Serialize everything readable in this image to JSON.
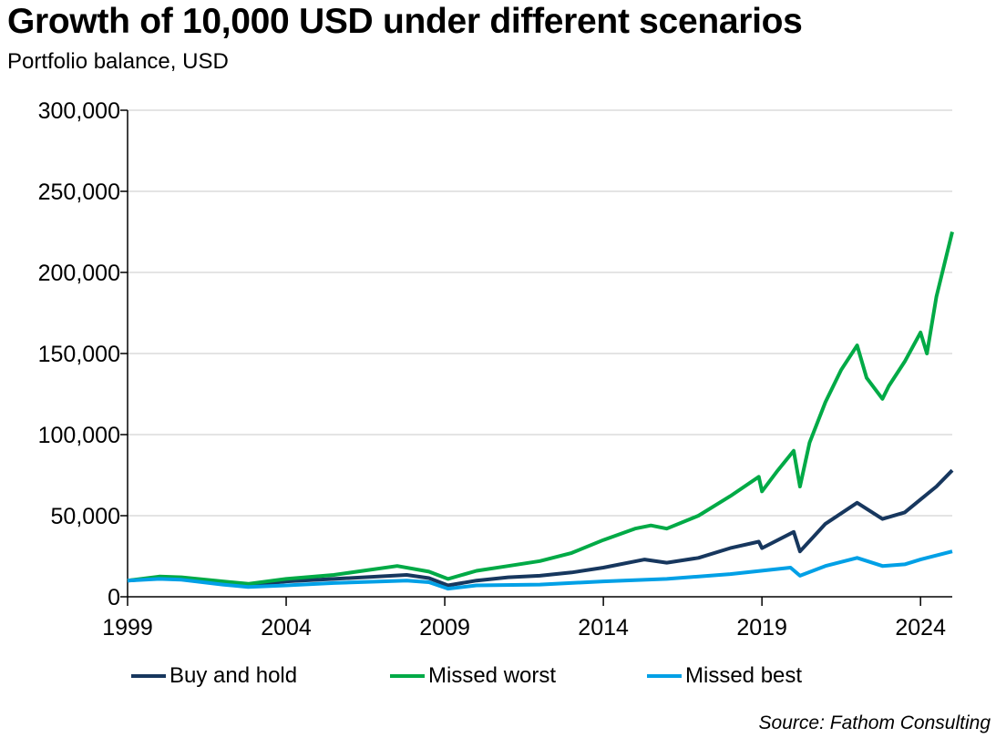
{
  "title": "Growth of 10,000 USD under different scenarios",
  "subtitle": "Portfolio balance, USD",
  "source": "Source: Fathom Consulting",
  "chart_data": {
    "type": "line",
    "title": "Growth of 10,000 USD under different scenarios",
    "ylabel": "Portfolio balance, USD",
    "xlim": [
      1999,
      2025
    ],
    "ylim": [
      0,
      300000
    ],
    "x_ticks": [
      "1999",
      "2004",
      "2009",
      "2014",
      "2019",
      "2024"
    ],
    "y_ticks": [
      "0",
      "50,000",
      "100,000",
      "150,000",
      "200,000",
      "250,000",
      "300,000"
    ],
    "grid": "horizontal",
    "legend": "bottom",
    "series": [
      {
        "name": "Buy and hold",
        "color": "#17375e",
        "x": [
          1999,
          2000,
          2000.7,
          2002,
          2002.8,
          2004,
          2005.5,
          2007.8,
          2008.5,
          2009.1,
          2010,
          2011,
          2012,
          2013,
          2014,
          2015.3,
          2016,
          2017,
          2018,
          2018.9,
          2019,
          2020,
          2020.2,
          2021,
          2022,
          2022.8,
          2023.5,
          2024,
          2024.5,
          2025
        ],
        "y": [
          10000,
          11500,
          11000,
          8500,
          7000,
          9500,
          11000,
          13500,
          11500,
          7000,
          10000,
          12000,
          13000,
          15000,
          18000,
          23000,
          21000,
          24000,
          30000,
          34000,
          30000,
          40000,
          28000,
          45000,
          58000,
          48000,
          52000,
          60000,
          68000,
          78000
        ]
      },
      {
        "name": "Missed worst",
        "color": "#00aa46",
        "x": [
          1999,
          2000,
          2000.7,
          2002,
          2002.8,
          2004,
          2005.5,
          2007.5,
          2008.5,
          2009.1,
          2010,
          2011,
          2012,
          2013,
          2014,
          2015,
          2015.5,
          2016,
          2017,
          2018,
          2018.9,
          2019,
          2019.5,
          2020,
          2020.2,
          2020.5,
          2021,
          2021.5,
          2022,
          2022.3,
          2022.8,
          2023,
          2023.5,
          2024,
          2024.2,
          2024.5,
          2025
        ],
        "y": [
          10000,
          12500,
          12000,
          9500,
          8000,
          11000,
          13500,
          19000,
          15500,
          11000,
          16000,
          19000,
          22000,
          27000,
          35000,
          42000,
          44000,
          42000,
          50000,
          62000,
          74000,
          65000,
          78000,
          90000,
          68000,
          95000,
          120000,
          140000,
          155000,
          135000,
          122000,
          130000,
          145000,
          163000,
          150000,
          185000,
          225000
        ]
      },
      {
        "name": "Missed best",
        "color": "#00a0e6",
        "x": [
          1999,
          2000,
          2000.7,
          2002,
          2002.8,
          2004,
          2005.5,
          2007.8,
          2008.5,
          2009.1,
          2010,
          2012,
          2014,
          2016,
          2018,
          2019.9,
          2020.2,
          2021,
          2022,
          2022.8,
          2023.5,
          2024,
          2025
        ],
        "y": [
          10000,
          11000,
          10500,
          7500,
          6000,
          7000,
          8500,
          10000,
          9000,
          5000,
          7000,
          7500,
          9500,
          11000,
          14000,
          18000,
          13000,
          19000,
          24000,
          19000,
          20000,
          23000,
          28000
        ]
      }
    ]
  }
}
